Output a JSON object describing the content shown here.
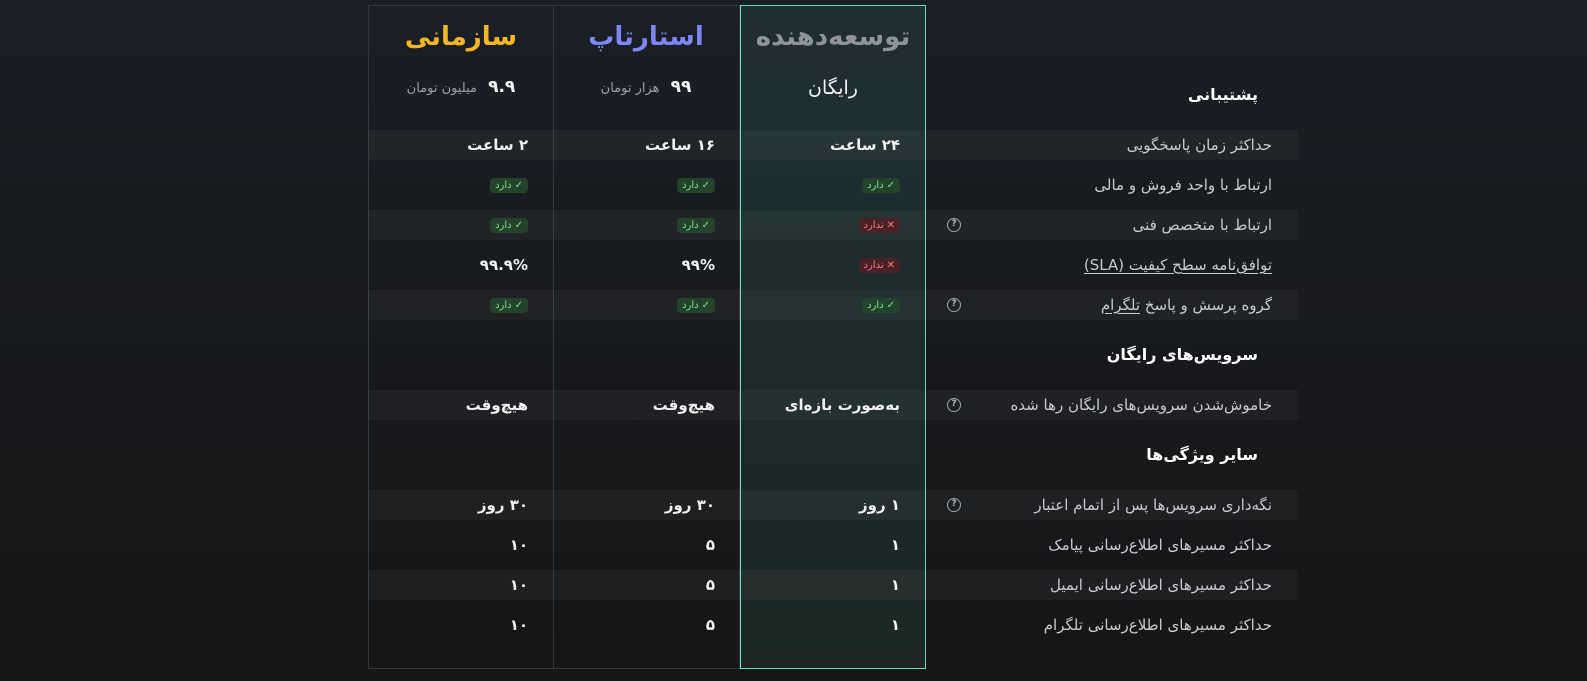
{
  "plans": {
    "developer": {
      "title": "توسعه‌دهنده",
      "price_free": "رایگان",
      "color": "#8f949a"
    },
    "startup": {
      "title": "استارتاپ",
      "price_num": "۹۹",
      "price_unit": "هزار تومان",
      "color": "#7e86f2"
    },
    "enterprise": {
      "title": "سازمانی",
      "price_num": "۹.۹",
      "price_unit": "میلیون تومان",
      "color": "#f5b624"
    }
  },
  "sections": {
    "support": "پشتیبانی",
    "free_services": "سرویس‌های رایگان",
    "other": "سایر ویژگی‌ها"
  },
  "badges": {
    "yes": "دارد",
    "no": "ندارد",
    "yes_mark": "✓",
    "no_mark": "✕"
  },
  "help_icon_glyph": "?",
  "rows": {
    "response": {
      "label": "حداکثر زمان پاسخگویی",
      "developer": "۲۴ ساعت",
      "startup": "۱۶ ساعت",
      "enterprise": "۲ ساعت"
    },
    "sales": {
      "label": "ارتباط با واحد فروش و مالی",
      "developer": "yes",
      "startup": "yes",
      "enterprise": "yes"
    },
    "technical": {
      "label": "ارتباط با متخصص فنی",
      "developer": "no",
      "startup": "yes",
      "enterprise": "yes"
    },
    "sla": {
      "label": "توافق‌نامه سطح کیفیت (SLA)",
      "developer": "no",
      "startup": "۹۹%",
      "enterprise": "۹۹.۹%"
    },
    "telegram_group": {
      "label_prefix": "گروه پرسش و پاسخ",
      "label_link": "تلگرام",
      "developer": "yes",
      "startup": "yes",
      "enterprise": "yes"
    },
    "shutdown": {
      "label": "خاموش‌شدن سرویس‌های رایگان رها شده",
      "developer": "به‌صورت بازه‌ای",
      "startup": "هیچ‌وقت",
      "enterprise": "هیچ‌وقت"
    },
    "retention": {
      "label": "نگه‌داری سرویس‌ها پس از اتمام اعتبار",
      "developer": "۱ روز",
      "startup": "۳۰ روز",
      "enterprise": "۳۰ روز"
    },
    "sms": {
      "label": "حداکثر مسیرهای اطلاع‌رسانی پیامک",
      "developer": "۱",
      "startup": "۵",
      "enterprise": "۱۰"
    },
    "email": {
      "label": "حداکثر مسیرهای اطلاع‌رسانی ایمیل",
      "developer": "۱",
      "startup": "۵",
      "enterprise": "۱۰"
    },
    "telegram": {
      "label": "حداکثر مسیرهای اطلاع‌رسانی تلگرام",
      "developer": "۱",
      "startup": "۵",
      "enterprise": "۱۰"
    }
  }
}
